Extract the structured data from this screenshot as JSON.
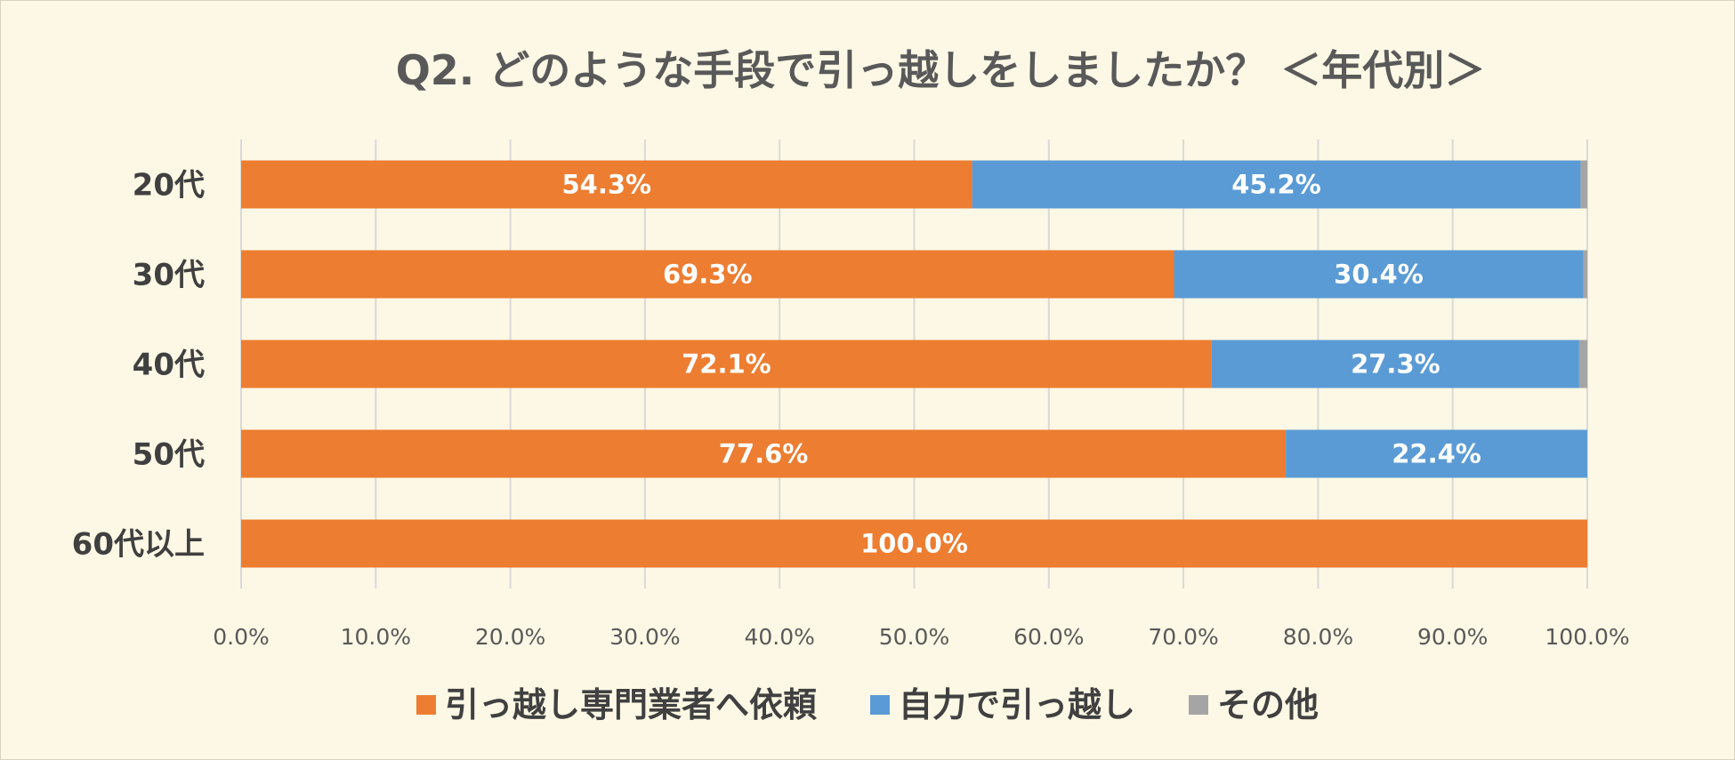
{
  "chart_data": {
    "type": "bar",
    "orientation": "horizontal",
    "stacked": true,
    "title": "Q2. どのような手段で引っ越しをしましたか？ ＜年代別＞",
    "categories": [
      "20代",
      "30代",
      "40代",
      "50代",
      "60代以上"
    ],
    "series": [
      {
        "name": "引っ越し専門業者へ依頼",
        "color": "#ed7d31",
        "values": [
          54.3,
          69.3,
          72.1,
          77.6,
          100.0
        ],
        "labels": [
          "54.3%",
          "69.3%",
          "72.1%",
          "77.6%",
          "100.0%"
        ]
      },
      {
        "name": "自力で引っ越し",
        "color": "#5b9bd5",
        "values": [
          45.2,
          30.4,
          27.3,
          22.4,
          0
        ],
        "labels": [
          "45.2%",
          "30.4%",
          "27.3%",
          "22.4%",
          ""
        ]
      },
      {
        "name": "その他",
        "color": "#a5a5a5",
        "values": [
          0.5,
          0.3,
          0.6,
          0,
          0
        ],
        "labels": [
          "",
          "",
          "",
          "",
          ""
        ]
      }
    ],
    "xlim": [
      0,
      100
    ],
    "xticks": [
      "0.0%",
      "10.0%",
      "20.0%",
      "30.0%",
      "40.0%",
      "50.0%",
      "60.0%",
      "70.0%",
      "80.0%",
      "90.0%",
      "100.0%"
    ],
    "grid": true,
    "legend": "bottom",
    "xlabel": "",
    "ylabel": ""
  }
}
